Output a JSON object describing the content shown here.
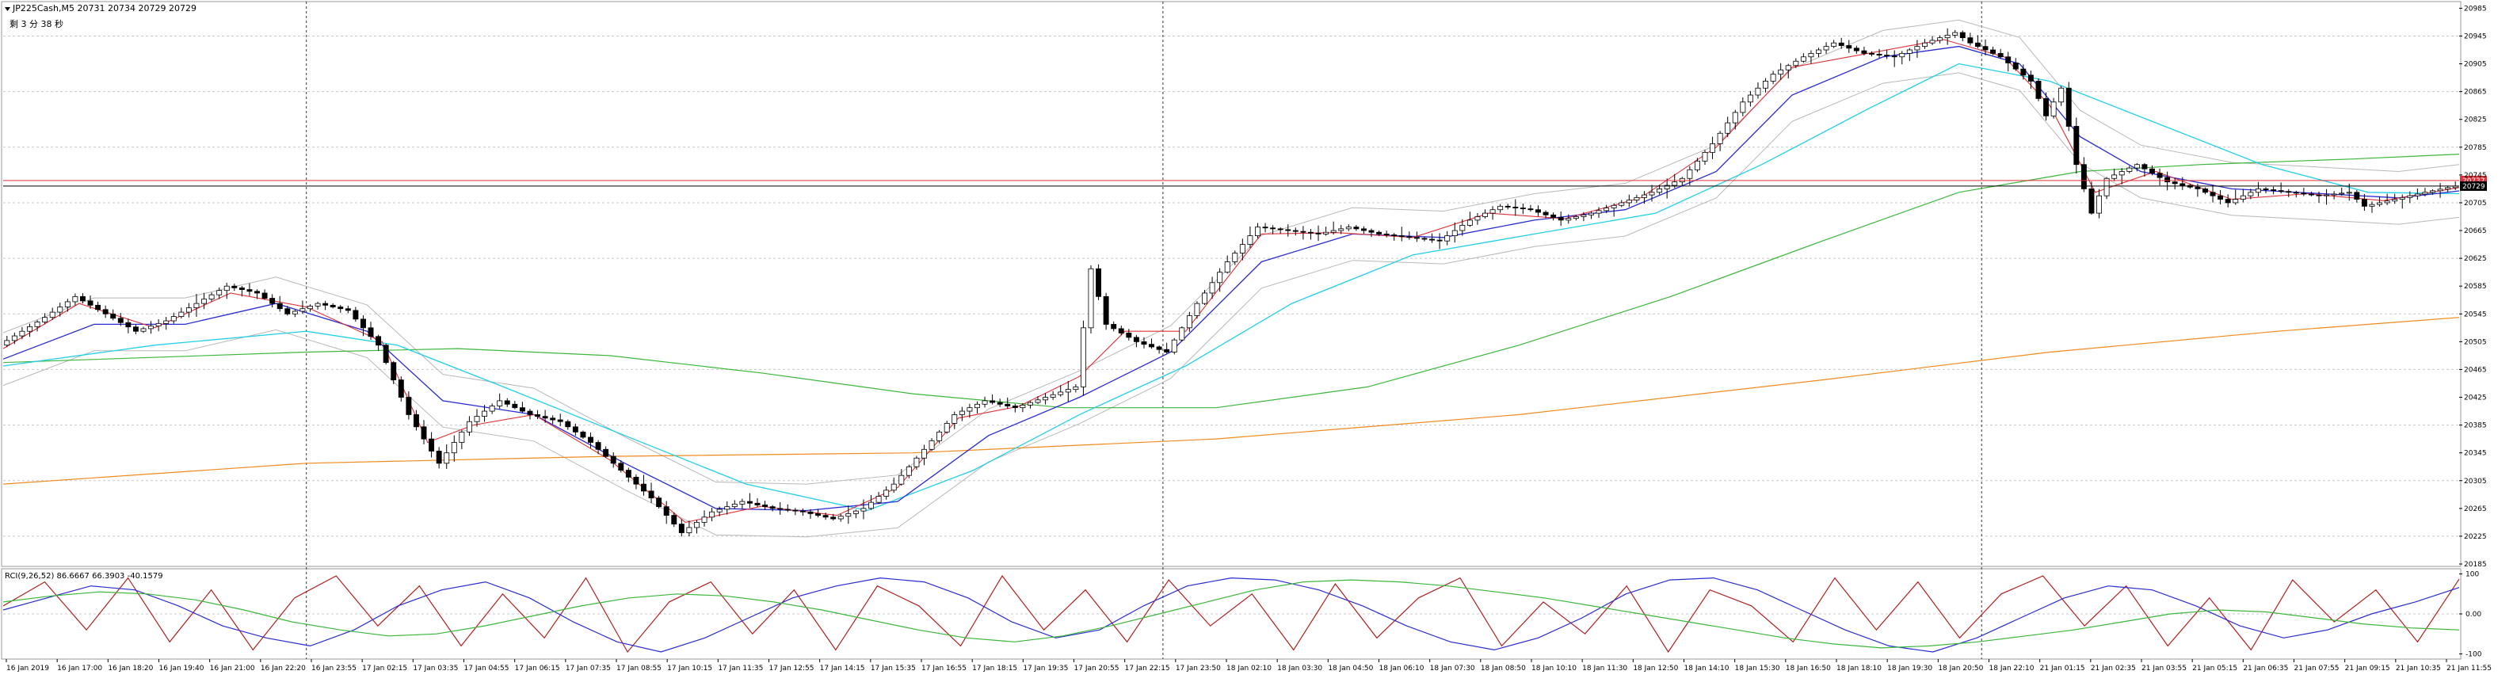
{
  "header": {
    "symbol_line": "JP225Cash,M5 20731 20734 20729 20729",
    "countdown": "剩 3 分 38 秒"
  },
  "colors": {
    "up": "#000000",
    "down": "#000000",
    "ma_fast": "#e0303a",
    "ma_mid": "#2a2ad0",
    "ma_slow": "#22d0e6",
    "ma_200": "#3cb63c",
    "ma_500": "#f08a1e",
    "bollinger": "#b8b8b8",
    "price_line": "#e0303a"
  },
  "chart_data": [
    {
      "type": "line",
      "title": "",
      "ylim": [
        20185,
        20990
      ],
      "price_ticks": [
        "20985",
        "20945",
        "20905",
        "20865",
        "20825",
        "20785",
        "20745",
        "20705",
        "20665",
        "20625",
        "20585",
        "20545",
        "20505",
        "20465",
        "20425",
        "20385",
        "20345",
        "20305",
        "20265",
        "20225",
        "20185"
      ],
      "highlighted_prices": [
        {
          "label": "20737",
          "color": "#e0303a"
        },
        {
          "label": "20729",
          "color": "#000000"
        }
      ],
      "grid": true,
      "time_ticks": [
        "16 Jan 2019",
        "16 Jan 17:00",
        "16 Jan 18:20",
        "16 Jan 19:40",
        "16 Jan 21:00",
        "16 Jan 22:20",
        "16 Jan 23:55",
        "17 Jan 02:15",
        "17 Jan 03:35",
        "17 Jan 04:55",
        "17 Jan 06:15",
        "17 Jan 07:35",
        "17 Jan 08:55",
        "17 Jan 10:15",
        "17 Jan 11:35",
        "17 Jan 12:55",
        "17 Jan 14:15",
        "17 Jan 15:35",
        "17 Jan 16:55",
        "17 Jan 18:15",
        "17 Jan 19:35",
        "17 Jan 20:55",
        "17 Jan 22:15",
        "17 Jan 23:50",
        "18 Jan 02:10",
        "18 Jan 03:30",
        "18 Jan 04:50",
        "18 Jan 06:10",
        "18 Jan 07:30",
        "18 Jan 08:50",
        "18 Jan 10:10",
        "18 Jan 11:30",
        "18 Jan 12:50",
        "18 Jan 14:10",
        "18 Jan 15:30",
        "18 Jan 16:50",
        "18 Jan 18:10",
        "18 Jan 19:30",
        "18 Jan 20:50",
        "18 Jan 22:10",
        "21 Jan 01:15",
        "21 Jan 02:35",
        "21 Jan 03:55",
        "21 Jan 05:15",
        "21 Jan 06:35",
        "21 Jan 07:55",
        "21 Jan 09:15",
        "21 Jan 10:35",
        "21 Jan 11:55"
      ],
      "price_path": [
        [
          0,
          20500
        ],
        [
          6,
          20540
        ],
        [
          10,
          20570
        ],
        [
          14,
          20545
        ],
        [
          18,
          20520
        ],
        [
          22,
          20535
        ],
        [
          26,
          20560
        ],
        [
          30,
          20585
        ],
        [
          34,
          20575
        ],
        [
          38,
          20545
        ],
        [
          42,
          20560
        ],
        [
          46,
          20550
        ],
        [
          50,
          20500
        ],
        [
          54,
          20400
        ],
        [
          58,
          20330
        ],
        [
          62,
          20390
        ],
        [
          66,
          20420
        ],
        [
          70,
          20400
        ],
        [
          74,
          20390
        ],
        [
          78,
          20360
        ],
        [
          82,
          20320
        ],
        [
          86,
          20280
        ],
        [
          90,
          20230
        ],
        [
          94,
          20260
        ],
        [
          98,
          20275
        ],
        [
          102,
          20265
        ],
        [
          106,
          20260
        ],
        [
          110,
          20250
        ],
        [
          114,
          20265
        ],
        [
          118,
          20300
        ],
        [
          122,
          20350
        ],
        [
          126,
          20400
        ],
        [
          130,
          20420
        ],
        [
          134,
          20410
        ],
        [
          138,
          20425
        ],
        [
          142,
          20440
        ],
        [
          144,
          20610
        ],
        [
          146,
          20530
        ],
        [
          150,
          20505
        ],
        [
          154,
          20490
        ],
        [
          158,
          20560
        ],
        [
          162,
          20620
        ],
        [
          166,
          20670
        ],
        [
          170,
          20665
        ],
        [
          174,
          20660
        ],
        [
          178,
          20670
        ],
        [
          182,
          20660
        ],
        [
          186,
          20655
        ],
        [
          190,
          20650
        ],
        [
          194,
          20680
        ],
        [
          198,
          20700
        ],
        [
          202,
          20695
        ],
        [
          206,
          20680
        ],
        [
          210,
          20690
        ],
        [
          214,
          20705
        ],
        [
          218,
          20720
        ],
        [
          222,
          20740
        ],
        [
          226,
          20790
        ],
        [
          230,
          20850
        ],
        [
          234,
          20890
        ],
        [
          238,
          20915
        ],
        [
          242,
          20935
        ],
        [
          246,
          20920
        ],
        [
          250,
          20915
        ],
        [
          254,
          20935
        ],
        [
          258,
          20950
        ],
        [
          260,
          20935
        ],
        [
          264,
          20915
        ],
        [
          268,
          20880
        ],
        [
          270,
          20830
        ],
        [
          272,
          20870
        ],
        [
          274,
          20760
        ],
        [
          276,
          20690
        ],
        [
          278,
          20740
        ],
        [
          282,
          20760
        ],
        [
          286,
          20735
        ],
        [
          290,
          20725
        ],
        [
          294,
          20705
        ],
        [
          298,
          20725
        ],
        [
          302,
          20720
        ],
        [
          306,
          20715
        ],
        [
          310,
          20720
        ],
        [
          312,
          20700
        ],
        [
          316,
          20710
        ],
        [
          320,
          20720
        ],
        [
          324,
          20729
        ]
      ],
      "ma_fast": [
        [
          0,
          20495
        ],
        [
          10,
          20560
        ],
        [
          20,
          20525
        ],
        [
          30,
          20575
        ],
        [
          40,
          20555
        ],
        [
          50,
          20505
        ],
        [
          56,
          20360
        ],
        [
          62,
          20385
        ],
        [
          70,
          20400
        ],
        [
          80,
          20335
        ],
        [
          90,
          20245
        ],
        [
          100,
          20268
        ],
        [
          110,
          20255
        ],
        [
          118,
          20295
        ],
        [
          126,
          20395
        ],
        [
          134,
          20412
        ],
        [
          142,
          20455
        ],
        [
          148,
          20520
        ],
        [
          156,
          20520
        ],
        [
          166,
          20660
        ],
        [
          176,
          20662
        ],
        [
          186,
          20655
        ],
        [
          196,
          20690
        ],
        [
          206,
          20682
        ],
        [
          216,
          20712
        ],
        [
          226,
          20785
        ],
        [
          236,
          20900
        ],
        [
          246,
          20920
        ],
        [
          256,
          20940
        ],
        [
          264,
          20915
        ],
        [
          270,
          20845
        ],
        [
          276,
          20720
        ],
        [
          284,
          20750
        ],
        [
          294,
          20710
        ],
        [
          304,
          20718
        ],
        [
          314,
          20708
        ],
        [
          324,
          20727
        ]
      ],
      "ma_mid": [
        [
          0,
          20480
        ],
        [
          12,
          20530
        ],
        [
          24,
          20530
        ],
        [
          36,
          20560
        ],
        [
          48,
          20520
        ],
        [
          58,
          20420
        ],
        [
          70,
          20400
        ],
        [
          82,
          20330
        ],
        [
          94,
          20265
        ],
        [
          106,
          20262
        ],
        [
          118,
          20275
        ],
        [
          130,
          20370
        ],
        [
          142,
          20425
        ],
        [
          154,
          20490
        ],
        [
          166,
          20620
        ],
        [
          178,
          20660
        ],
        [
          190,
          20655
        ],
        [
          202,
          20680
        ],
        [
          214,
          20695
        ],
        [
          226,
          20750
        ],
        [
          236,
          20860
        ],
        [
          248,
          20915
        ],
        [
          258,
          20930
        ],
        [
          266,
          20905
        ],
        [
          274,
          20800
        ],
        [
          282,
          20750
        ],
        [
          294,
          20725
        ],
        [
          306,
          20718
        ],
        [
          316,
          20712
        ],
        [
          324,
          20722
        ]
      ],
      "ma_slow": [
        [
          0,
          20470
        ],
        [
          20,
          20500
        ],
        [
          40,
          20520
        ],
        [
          52,
          20500
        ],
        [
          66,
          20440
        ],
        [
          82,
          20370
        ],
        [
          98,
          20300
        ],
        [
          114,
          20262
        ],
        [
          128,
          20320
        ],
        [
          142,
          20400
        ],
        [
          156,
          20470
        ],
        [
          170,
          20560
        ],
        [
          186,
          20630
        ],
        [
          202,
          20660
        ],
        [
          218,
          20690
        ],
        [
          232,
          20760
        ],
        [
          246,
          20840
        ],
        [
          258,
          20905
        ],
        [
          270,
          20880
        ],
        [
          284,
          20820
        ],
        [
          298,
          20760
        ],
        [
          312,
          20720
        ],
        [
          324,
          20718
        ]
      ],
      "ma_200": [
        [
          0,
          20475
        ],
        [
          40,
          20490
        ],
        [
          60,
          20495
        ],
        [
          80,
          20485
        ],
        [
          100,
          20460
        ],
        [
          120,
          20430
        ],
        [
          140,
          20410
        ],
        [
          160,
          20410
        ],
        [
          180,
          20440
        ],
        [
          200,
          20500
        ],
        [
          220,
          20570
        ],
        [
          240,
          20650
        ],
        [
          258,
          20720
        ],
        [
          274,
          20750
        ],
        [
          290,
          20760
        ],
        [
          310,
          20768
        ],
        [
          324,
          20775
        ]
      ],
      "ma_500": [
        [
          0,
          20300
        ],
        [
          40,
          20330
        ],
        [
          80,
          20340
        ],
        [
          120,
          20345
        ],
        [
          160,
          20365
        ],
        [
          200,
          20400
        ],
        [
          240,
          20450
        ],
        [
          270,
          20490
        ],
        [
          300,
          20520
        ],
        [
          324,
          20540
        ]
      ]
    },
    {
      "type": "line",
      "title": "",
      "label": "RCI(9,26,52) 86.6667 66.3903 -40.1579",
      "ylim": [
        -105,
        105
      ],
      "ticks": [
        "100",
        "0.00",
        "-100"
      ],
      "series": [
        {
          "name": "",
          "color": "#b02020",
          "values": [
            20,
            80,
            -40,
            90,
            -70,
            60,
            -90,
            40,
            95,
            -30,
            70,
            -80,
            50,
            -60,
            90,
            -95,
            30,
            80,
            -50,
            60,
            -90,
            70,
            20,
            -80,
            95,
            -40,
            60,
            -70,
            85,
            -30,
            50,
            -90,
            75,
            -60,
            40,
            90,
            -80,
            30,
            -50,
            70,
            -95,
            60,
            20,
            -70,
            90,
            -40,
            80,
            -60,
            50,
            95,
            -30,
            70,
            -80,
            40,
            -90,
            85,
            -20,
            60,
            -70,
            87
          ]
        },
        {
          "name": "",
          "color": "#2a2ad0",
          "values": [
            10,
            40,
            70,
            60,
            20,
            -30,
            -60,
            -80,
            -40,
            20,
            60,
            80,
            40,
            -20,
            -70,
            -95,
            -60,
            -10,
            40,
            70,
            90,
            80,
            40,
            -20,
            -60,
            -40,
            20,
            70,
            90,
            85,
            60,
            20,
            -30,
            -70,
            -90,
            -60,
            -10,
            50,
            85,
            90,
            60,
            10,
            -40,
            -80,
            -95,
            -60,
            -10,
            40,
            70,
            60,
            20,
            -30,
            -60,
            -40,
            0,
            30,
            66
          ]
        },
        {
          "name": "",
          "color": "#3cb63c",
          "values": [
            30,
            45,
            55,
            50,
            35,
            10,
            -20,
            -40,
            -55,
            -50,
            -30,
            -5,
            20,
            40,
            50,
            45,
            30,
            10,
            -15,
            -40,
            -60,
            -70,
            -55,
            -30,
            0,
            30,
            60,
            80,
            85,
            80,
            70,
            55,
            40,
            20,
            0,
            -20,
            -40,
            -60,
            -75,
            -85,
            -80,
            -70,
            -55,
            -40,
            -20,
            0,
            10,
            5,
            -10,
            -25,
            -35,
            -40
          ]
        }
      ]
    }
  ]
}
